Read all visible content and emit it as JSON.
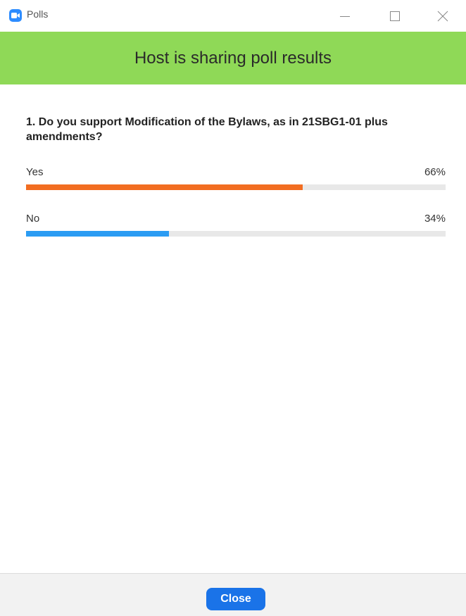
{
  "window": {
    "title": "Polls",
    "app_icon": "zoom-camera-icon",
    "controls": [
      "minimize-icon",
      "maximize-icon",
      "close-icon"
    ]
  },
  "banner": {
    "text": "Host is sharing poll results",
    "color": "#8fd957"
  },
  "poll": {
    "question": "1. Do you support Modification of the Bylaws, as in 21SBG1-01 plus amendments?",
    "answers": [
      {
        "label": "Yes",
        "percent_text": "66%",
        "percent": 66,
        "color": "#f26d21"
      },
      {
        "label": "No",
        "percent_text": "34%",
        "percent": 34,
        "color": "#2b9cf3"
      }
    ]
  },
  "footer": {
    "close_label": "Close",
    "accent": "#1a73e8"
  }
}
